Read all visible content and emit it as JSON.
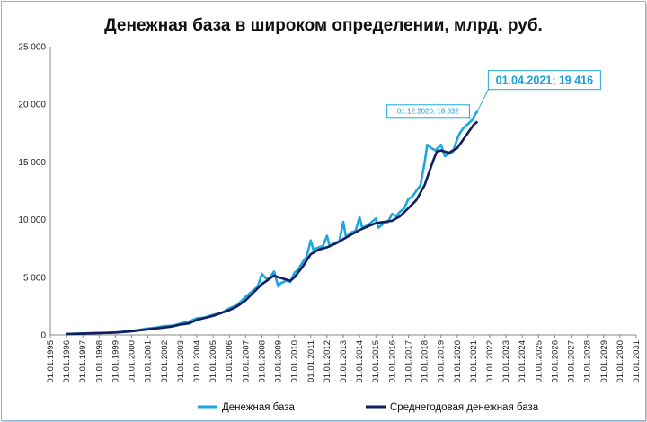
{
  "chart_data": {
    "type": "line",
    "title": "Денежная база в широком определении, млрд. руб.",
    "xlabel": "",
    "ylabel": "",
    "x_axis": {
      "type": "date",
      "min": "1995-01-01",
      "max": "2031-01-01",
      "tick_labels": [
        "01.01.1995",
        "01.01.1996",
        "01.01.1997",
        "01.01.1998",
        "01.01.1999",
        "01.01.2000",
        "01.01.2001",
        "01.01.2002",
        "01.01.2003",
        "01.01.2004",
        "01.01.2005",
        "01.01.2006",
        "01.01.2007",
        "01.01.2008",
        "01.01.2009",
        "01.01.2010",
        "01.01.2011",
        "01.01.2012",
        "01.01.2013",
        "01.01.2014",
        "01.01.2015",
        "01.01.2016",
        "01.01.2017",
        "01.01.2018",
        "01.01.2019",
        "01.01.2020",
        "01.01.2021",
        "01.01.2022",
        "01.01.2023",
        "01.01.2024",
        "01.01.2025",
        "01.01.2026",
        "01.01.2027",
        "01.01.2028",
        "01.01.2029",
        "01.01.2030",
        "01.01.2031"
      ]
    },
    "y_axis": {
      "min": 0,
      "max": 25000,
      "tick_labels": [
        "0",
        "5 000",
        "10 000",
        "15 000",
        "20 000",
        "25 000"
      ]
    },
    "grid": false,
    "legend_position": "bottom",
    "series": [
      {
        "name": "Денежная база",
        "color": "#1ea6e0",
        "points": [
          [
            "1996-01-01",
            80
          ],
          [
            "1996-07-01",
            110
          ],
          [
            "1997-01-01",
            130
          ],
          [
            "1997-07-01",
            150
          ],
          [
            "1998-01-01",
            170
          ],
          [
            "1998-07-01",
            180
          ],
          [
            "1999-01-01",
            220
          ],
          [
            "1999-07-01",
            280
          ],
          [
            "2000-01-01",
            350
          ],
          [
            "2000-07-01",
            450
          ],
          [
            "2001-01-01",
            560
          ],
          [
            "2001-07-01",
            640
          ],
          [
            "2002-01-01",
            760
          ],
          [
            "2002-07-01",
            800
          ],
          [
            "2003-01-01",
            1000
          ],
          [
            "2003-07-01",
            1150
          ],
          [
            "2004-01-01",
            1450
          ],
          [
            "2004-07-01",
            1500
          ],
          [
            "2005-01-01",
            1750
          ],
          [
            "2005-07-01",
            1900
          ],
          [
            "2006-01-01",
            2300
          ],
          [
            "2006-07-01",
            2600
          ],
          [
            "2007-01-01",
            3300
          ],
          [
            "2007-04-01",
            3600
          ],
          [
            "2007-07-01",
            3900
          ],
          [
            "2007-10-01",
            4200
          ],
          [
            "2008-01-01",
            5300
          ],
          [
            "2008-04-01",
            4900
          ],
          [
            "2008-07-01",
            5000
          ],
          [
            "2008-10-01",
            5500
          ],
          [
            "2009-01-01",
            4200
          ],
          [
            "2009-03-01",
            4500
          ],
          [
            "2009-07-01",
            4700
          ],
          [
            "2009-10-01",
            4600
          ],
          [
            "2010-01-01",
            5400
          ],
          [
            "2010-04-01",
            5700
          ],
          [
            "2010-07-01",
            6300
          ],
          [
            "2010-10-01",
            6800
          ],
          [
            "2011-01-01",
            8200
          ],
          [
            "2011-03-01",
            7400
          ],
          [
            "2011-07-01",
            7600
          ],
          [
            "2011-10-01",
            7700
          ],
          [
            "2012-01-01",
            8600
          ],
          [
            "2012-03-01",
            7700
          ],
          [
            "2012-07-01",
            8000
          ],
          [
            "2012-10-01",
            8100
          ],
          [
            "2013-01-01",
            9800
          ],
          [
            "2013-03-01",
            8500
          ],
          [
            "2013-07-01",
            8900
          ],
          [
            "2013-10-01",
            9000
          ],
          [
            "2014-01-01",
            10200
          ],
          [
            "2014-03-01",
            9300
          ],
          [
            "2014-07-01",
            9500
          ],
          [
            "2014-10-01",
            9800
          ],
          [
            "2015-01-01",
            10100
          ],
          [
            "2015-03-01",
            9300
          ],
          [
            "2015-07-01",
            9700
          ],
          [
            "2015-10-01",
            9800
          ],
          [
            "2016-01-01",
            10500
          ],
          [
            "2016-04-01",
            10300
          ],
          [
            "2016-07-01",
            10700
          ],
          [
            "2016-10-01",
            11000
          ],
          [
            "2017-01-01",
            11800
          ],
          [
            "2017-04-01",
            12000
          ],
          [
            "2017-07-01",
            12500
          ],
          [
            "2017-10-01",
            13000
          ],
          [
            "2018-01-01",
            15000
          ],
          [
            "2018-03-01",
            16500
          ],
          [
            "2018-06-01",
            16200
          ],
          [
            "2018-09-01",
            16000
          ],
          [
            "2019-01-01",
            16500
          ],
          [
            "2019-04-01",
            15500
          ],
          [
            "2019-07-01",
            15700
          ],
          [
            "2019-10-01",
            15900
          ],
          [
            "2020-01-01",
            17000
          ],
          [
            "2020-03-01",
            17500
          ],
          [
            "2020-06-01",
            18000
          ],
          [
            "2020-09-01",
            18300
          ],
          [
            "2020-12-01",
            18632
          ],
          [
            "2021-02-01",
            19100
          ],
          [
            "2021-04-01",
            19416
          ]
        ]
      },
      {
        "name": "Среднегодовая денежная база",
        "color": "#0f1f5c",
        "points": [
          [
            "1996-01-01",
            70
          ],
          [
            "1997-01-01",
            110
          ],
          [
            "1998-01-01",
            160
          ],
          [
            "1999-01-01",
            200
          ],
          [
            "2000-01-01",
            320
          ],
          [
            "2001-01-01",
            480
          ],
          [
            "2002-01-01",
            650
          ],
          [
            "2002-07-01",
            730
          ],
          [
            "2003-01-01",
            900
          ],
          [
            "2003-07-01",
            1000
          ],
          [
            "2004-01-01",
            1300
          ],
          [
            "2005-01-01",
            1650
          ],
          [
            "2006-01-01",
            2150
          ],
          [
            "2006-07-01",
            2500
          ],
          [
            "2007-01-01",
            3000
          ],
          [
            "2007-07-01",
            3700
          ],
          [
            "2008-01-01",
            4400
          ],
          [
            "2008-07-01",
            4900
          ],
          [
            "2008-10-01",
            5150
          ],
          [
            "2009-01-01",
            5000
          ],
          [
            "2009-07-01",
            4800
          ],
          [
            "2009-10-01",
            4700
          ],
          [
            "2010-01-01",
            5000
          ],
          [
            "2010-07-01",
            5900
          ],
          [
            "2011-01-01",
            7000
          ],
          [
            "2011-07-01",
            7400
          ],
          [
            "2012-01-01",
            7600
          ],
          [
            "2012-07-01",
            7900
          ],
          [
            "2013-01-01",
            8300
          ],
          [
            "2013-07-01",
            8700
          ],
          [
            "2014-01-01",
            9100
          ],
          [
            "2014-07-01",
            9400
          ],
          [
            "2015-01-01",
            9700
          ],
          [
            "2015-07-01",
            9800
          ],
          [
            "2016-01-01",
            9900
          ],
          [
            "2016-07-01",
            10300
          ],
          [
            "2017-01-01",
            11000
          ],
          [
            "2017-07-01",
            11700
          ],
          [
            "2018-01-01",
            13000
          ],
          [
            "2018-07-01",
            15000
          ],
          [
            "2018-10-01",
            15900
          ],
          [
            "2019-01-01",
            16000
          ],
          [
            "2019-07-01",
            15800
          ],
          [
            "2020-01-01",
            16200
          ],
          [
            "2020-07-01",
            17200
          ],
          [
            "2021-01-01",
            18200
          ],
          [
            "2021-04-01",
            18500
          ]
        ]
      }
    ],
    "annotations": [
      {
        "text": "01.12.2020; 18 632",
        "x": "2020-12-01",
        "y": 18632,
        "size": "small"
      },
      {
        "text": "01.04.2021; 19 416",
        "x": "2021-04-01",
        "y": 19416,
        "size": "large"
      }
    ]
  }
}
